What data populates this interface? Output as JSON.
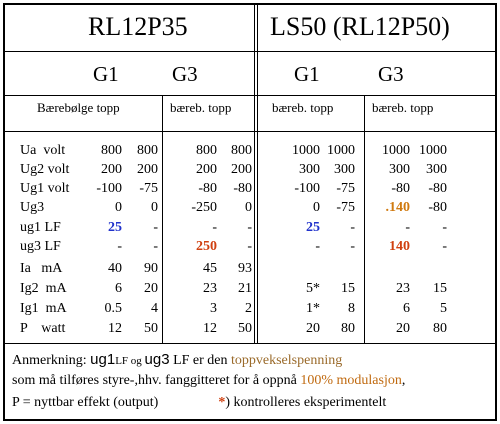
{
  "title_left": "RL12P35",
  "title_right": "LS50 (RL12P50)",
  "grid_labels": [
    "G1",
    "G3",
    "G1",
    "G3"
  ],
  "sub_headers": [
    "Bærebølge topp",
    "bæreb. topp",
    "bæreb. topp",
    "bæreb. topp"
  ],
  "row_labels": [
    "Ua  volt",
    "Ug2 volt",
    "Ug1 volt",
    "Ug3",
    "ug1 LF",
    "ug3 LF",
    "Ia   mA",
    "Ig2  mA",
    "Ig1  mA",
    "P    watt"
  ],
  "rows": [
    [
      "800",
      "800",
      "800",
      "800",
      "1000",
      "1000",
      "1000",
      "1000"
    ],
    [
      "200",
      "200",
      "200",
      "200",
      "300",
      "300",
      "300",
      "300"
    ],
    [
      "-100",
      "-75",
      "-80",
      "-80",
      "-100",
      "-75",
      "-80",
      "-80"
    ],
    [
      "0",
      "0",
      "-250",
      "0",
      "0",
      "-75",
      ".140",
      "-80"
    ],
    [
      "25",
      "-",
      "-",
      "-",
      "25",
      "-",
      "-",
      "-"
    ],
    [
      "-",
      "-",
      "250",
      "-",
      "-",
      "-",
      "140",
      "-"
    ],
    [
      "40",
      "90",
      "45",
      "93",
      "",
      "",
      "",
      ""
    ],
    [
      "6",
      "20",
      "23",
      "21",
      "5*",
      "15",
      "23",
      "15"
    ],
    [
      "0.5",
      "4",
      "3",
      "2",
      "1*",
      "8",
      "6",
      "5"
    ],
    [
      "12",
      "50",
      "12",
      "50",
      "20",
      "80",
      "20",
      "80"
    ]
  ],
  "colors": {
    "blue": "#2233cc",
    "orange": "#d04010",
    "gold": "#d07a10",
    "brown": "#9a6a2a"
  },
  "note": {
    "line1_a": "Anmerkning: ",
    "line1_b": "ug1",
    "line1_c": "LF og ",
    "line1_d": "ug3",
    "line1_e": " LF er den ",
    "line1_f": "toppvekselspenning",
    "line2_a": "som må tilføres styre-,hhv. fanggitteret for å oppnå ",
    "line2_b": "100% modulasjon",
    "line2_c": ",",
    "line3_a": "P = nyttbar effekt (output)",
    "line3_b": "*",
    "line3_c": ") kontrolleres eksperimentelt"
  }
}
